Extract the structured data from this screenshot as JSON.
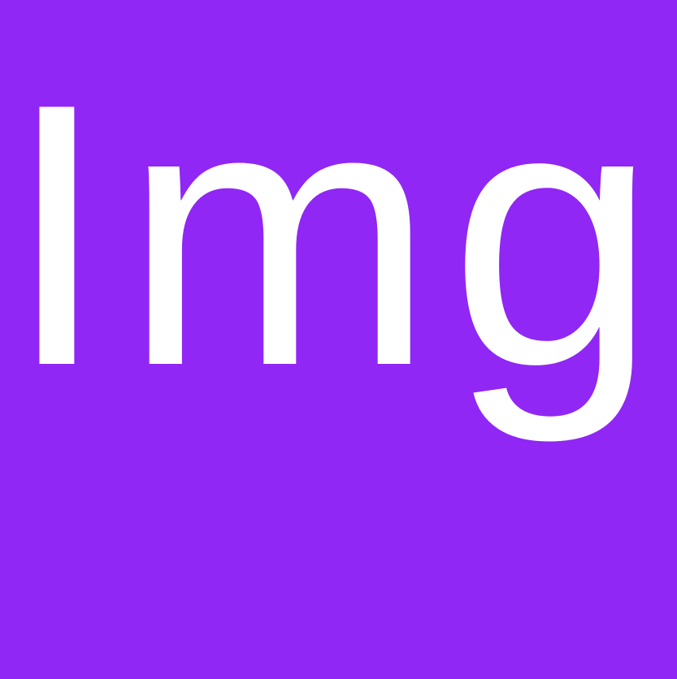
{
  "placeholder": {
    "text": "Img",
    "background_color": "#9027f4",
    "text_color": "#ffffff"
  }
}
